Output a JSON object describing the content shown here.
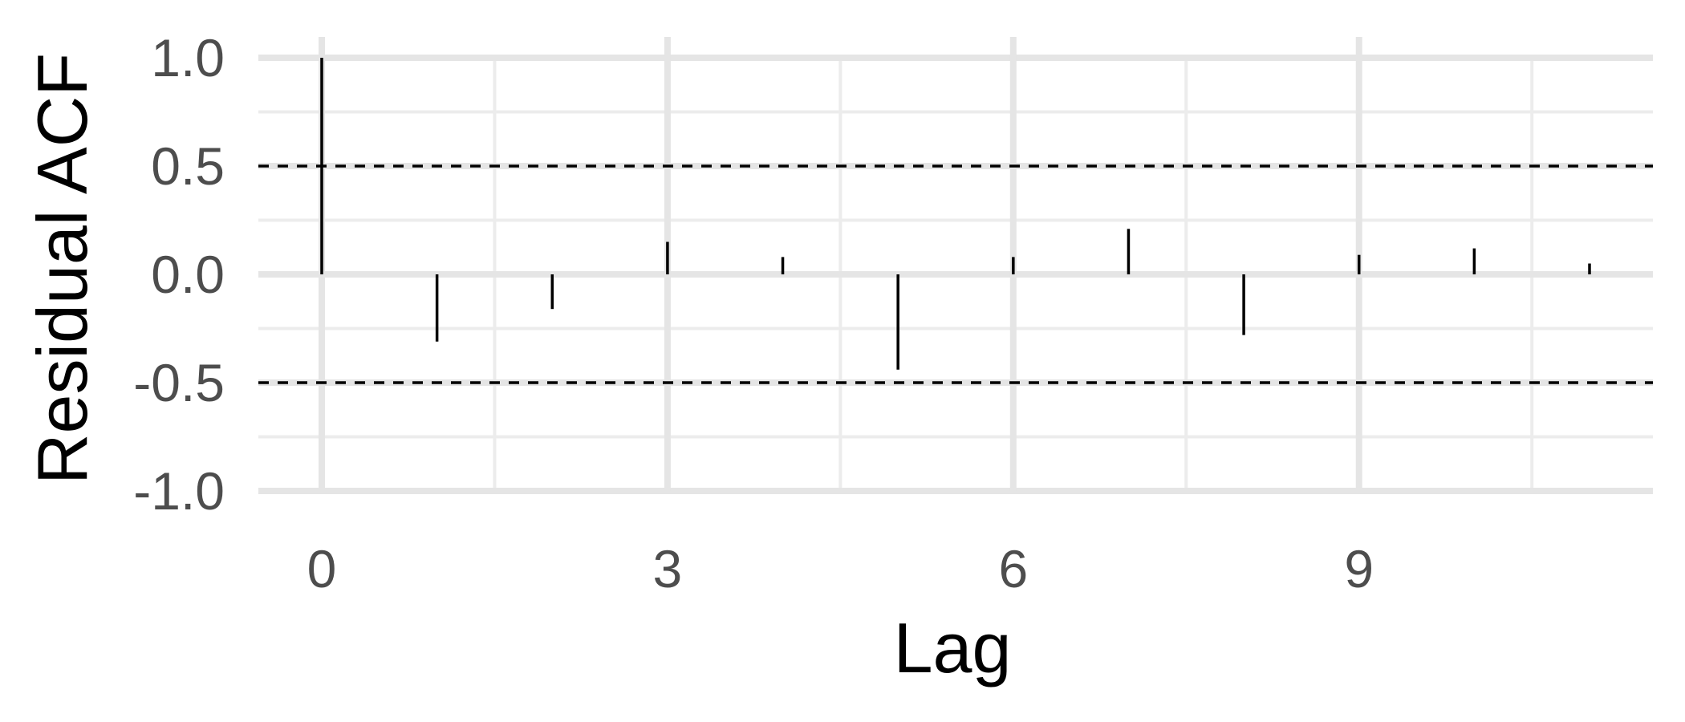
{
  "chart_data": {
    "type": "bar",
    "chart_kind": "acf-stem",
    "xlabel": "Lag",
    "ylabel": "Residual ACF",
    "xlim": [
      -0.55,
      11.55
    ],
    "ylim": [
      -1.0,
      1.0
    ],
    "x_ticks": [
      0,
      3,
      6,
      9
    ],
    "x_tick_labels": [
      "0",
      "3",
      "6",
      "9"
    ],
    "y_ticks": [
      -1.0,
      -0.5,
      0.0,
      0.5,
      1.0
    ],
    "y_tick_labels": [
      "-1.0",
      "-0.5",
      "0.0",
      "0.5",
      "1.0"
    ],
    "lags": [
      0,
      1,
      2,
      3,
      4,
      5,
      6,
      7,
      8,
      9,
      10,
      11
    ],
    "values": [
      1.0,
      -0.31,
      -0.16,
      0.15,
      0.08,
      -0.44,
      0.08,
      0.21,
      -0.28,
      0.09,
      0.12,
      0.05
    ],
    "confidence_bounds": [
      0.5,
      -0.5
    ],
    "grid": true,
    "legend": "none"
  },
  "colors": {
    "background": "#ffffff",
    "grid_major": "#e5e5e5",
    "grid_minor": "#ececec",
    "stem": "#000000",
    "bound_line": "#000000",
    "tick_text": "#4d4d4d",
    "axis_title": "#000000"
  }
}
